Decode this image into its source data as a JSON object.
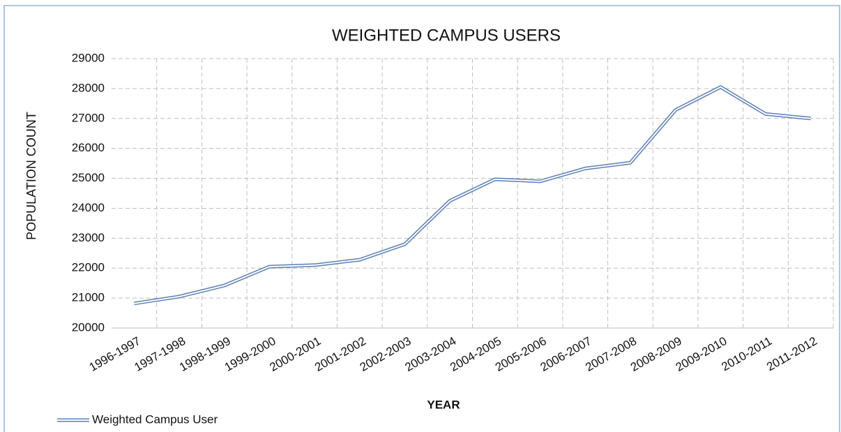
{
  "chart_data": {
    "type": "line",
    "title": "WEIGHTED CAMPUS USERS",
    "x_label": "YEAR",
    "y_label": "POPULATION COUNT",
    "categories": [
      "1996-1997",
      "1997-1998",
      "1998-1999",
      "1999-2000",
      "2000-2001",
      "2001-2002",
      "2002-2003",
      "2003-2004",
      "2004-2005",
      "2005-2006",
      "2006-2007",
      "2007-2008",
      "2008-2009",
      "2009-2010",
      "2010-2011",
      "2011-2012"
    ],
    "series": [
      {
        "name": "Weighted Campus User",
        "color": "#5b7fb4",
        "values": [
          20820,
          21050,
          21420,
          22050,
          22100,
          22280,
          22800,
          24250,
          24970,
          24900,
          25330,
          25520,
          27280,
          28050,
          27150,
          27000
        ]
      }
    ],
    "ylim": [
      20000,
      29000
    ],
    "yticks": [
      20000,
      21000,
      22000,
      23000,
      24000,
      25000,
      26000,
      27000,
      28000,
      29000
    ],
    "grid": true,
    "legend": "bottom-left"
  }
}
